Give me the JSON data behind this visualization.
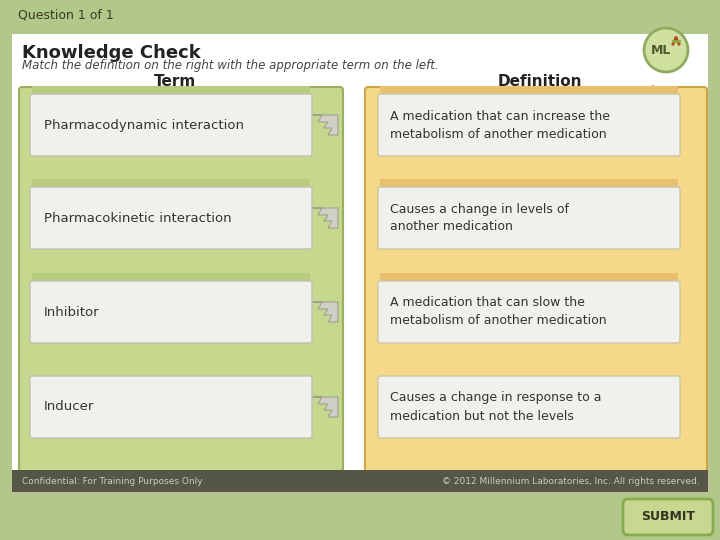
{
  "bg_outer": "#b2c88a",
  "bg_inner": "#ffffff",
  "question_label": "Question 1 of 1",
  "question_bar_color": "#6b7a4a",
  "title": "Knowledge Check",
  "subtitle": "Match the definition on the right with the appropriate term on the left.",
  "term_header": "Term",
  "def_header": "Definition",
  "terms": [
    "Pharmacodynamic interaction",
    "Pharmacokinetic interaction",
    "Inhibitor",
    "Inducer"
  ],
  "definitions": [
    "A medication that can increase the\nmetabolism of another medication",
    "Causes a change in levels of\nanother medication",
    "A medication that can slow the\nmetabolism of another medication",
    "Causes a change in response to a\nmedication but not the levels"
  ],
  "left_panel_bg": "#c5d88e",
  "left_panel_border": "#9ab060",
  "right_panel_bg": "#f5d888",
  "right_panel_border": "#c8a840",
  "term_box_bg": "#f0f0ec",
  "term_box_border": "#c0c0b0",
  "def_box_bg": "#f0f0ec",
  "def_box_border": "#c8c8a8",
  "term_green_strip": "#b8cc80",
  "footer_bar_color": "#555548",
  "footer_text_left": "Confidential: For Training Purposes Only",
  "footer_text_right": "© 2012 Millennium Laboratories, Inc. All rights reserved.",
  "footer_text_color": "#ccccbb",
  "submit_label": "SUBMIT",
  "submit_bg": "#c8d890",
  "submit_border": "#88aa50",
  "wave_color": "#9ab868",
  "ml_logo_text": "ML",
  "ml_logo_bg": "#d0e0a0",
  "ml_logo_border": "#90aa60"
}
